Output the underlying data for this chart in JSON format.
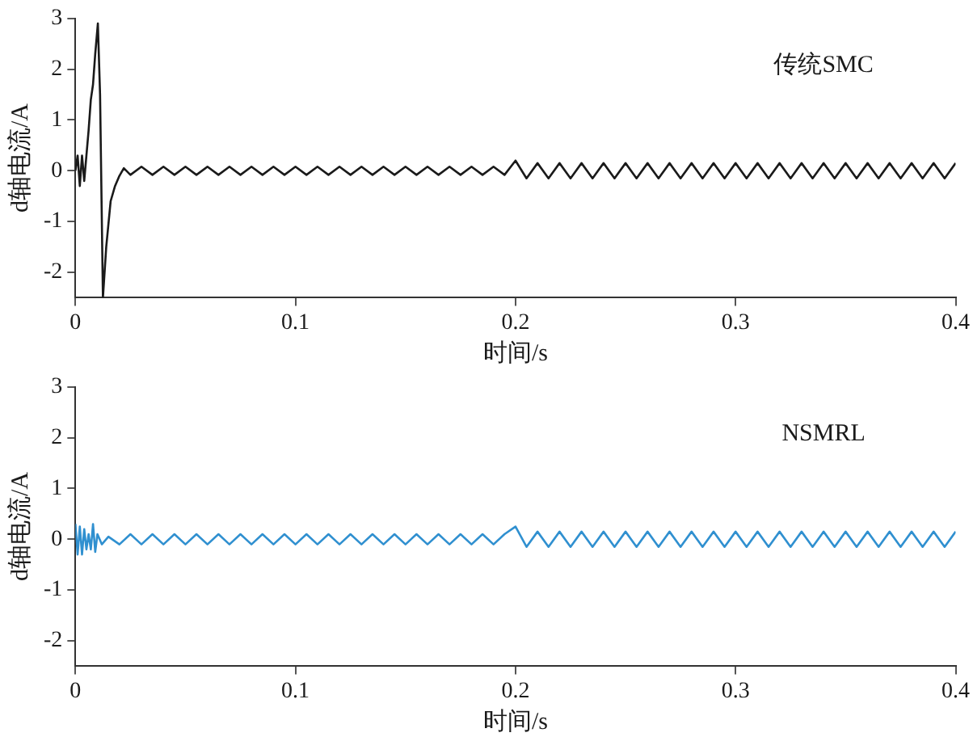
{
  "chart_data": [
    {
      "type": "line",
      "xlabel": "时间/s",
      "ylabel": "d轴电流/A",
      "annotations": [
        "传统SMC"
      ],
      "xlim": [
        0,
        0.4
      ],
      "xticks": [
        0,
        0.1,
        0.2,
        0.3,
        0.4
      ],
      "ylim": [
        -2.5,
        3
      ],
      "yticks": [
        -2,
        -1,
        0,
        1,
        2,
        3
      ],
      "grid": false,
      "legend": false,
      "marker": "none",
      "series": [
        {
          "color": "#1a1a1a",
          "x": [
            0,
            0.001,
            0.002,
            0.003,
            0.004,
            0.005,
            0.006,
            0.007,
            0.008,
            0.009,
            0.0102,
            0.0112,
            0.0125,
            0.014,
            0.016,
            0.018,
            0.02,
            0.022,
            0.025,
            0.03,
            0.035,
            0.04,
            0.045,
            0.05,
            0.055,
            0.06,
            0.065,
            0.07,
            0.075,
            0.08,
            0.085,
            0.09,
            0.095,
            0.1,
            0.105,
            0.11,
            0.115,
            0.12,
            0.125,
            0.13,
            0.135,
            0.14,
            0.145,
            0.15,
            0.155,
            0.16,
            0.165,
            0.17,
            0.175,
            0.18,
            0.185,
            0.19,
            0.195,
            0.2,
            0.205,
            0.21,
            0.215,
            0.22,
            0.225,
            0.23,
            0.235,
            0.24,
            0.245,
            0.25,
            0.255,
            0.26,
            0.265,
            0.27,
            0.275,
            0.28,
            0.285,
            0.29,
            0.295,
            0.3,
            0.305,
            0.31,
            0.315,
            0.32,
            0.325,
            0.33,
            0.335,
            0.34,
            0.345,
            0.35,
            0.355,
            0.36,
            0.365,
            0.37,
            0.375,
            0.38,
            0.385,
            0.39,
            0.395,
            0.4
          ],
          "values": [
            0,
            0.3,
            -0.3,
            0.3,
            -0.2,
            0.3,
            0.8,
            1.4,
            1.7,
            2.3,
            2.9,
            1.5,
            -2.5,
            -1.5,
            -0.6,
            -0.3,
            -0.1,
            0.05,
            -0.08,
            0.08,
            -0.08,
            0.08,
            -0.08,
            0.08,
            -0.08,
            0.08,
            -0.08,
            0.08,
            -0.08,
            0.08,
            -0.08,
            0.08,
            -0.08,
            0.08,
            -0.08,
            0.08,
            -0.08,
            0.08,
            -0.08,
            0.08,
            -0.08,
            0.08,
            -0.08,
            0.08,
            -0.08,
            0.08,
            -0.08,
            0.08,
            -0.08,
            0.08,
            -0.08,
            0.08,
            -0.08,
            0.2,
            -0.15,
            0.15,
            -0.15,
            0.15,
            -0.15,
            0.15,
            -0.15,
            0.15,
            -0.15,
            0.15,
            -0.15,
            0.15,
            -0.15,
            0.15,
            -0.15,
            0.15,
            -0.15,
            0.15,
            -0.15,
            0.15,
            -0.15,
            0.15,
            -0.15,
            0.15,
            -0.15,
            0.15,
            -0.15,
            0.15,
            -0.15,
            0.15,
            -0.15,
            0.15,
            -0.15,
            0.15,
            -0.15,
            0.15,
            -0.15,
            0.15,
            -0.15,
            0.15
          ]
        }
      ]
    },
    {
      "type": "line",
      "xlabel": "时间/s",
      "ylabel": "d轴电流/A",
      "annotations": [
        "NSMRL"
      ],
      "xlim": [
        0,
        0.4
      ],
      "xticks": [
        0,
        0.1,
        0.2,
        0.3,
        0.4
      ],
      "ylim": [
        -2.5,
        3
      ],
      "yticks": [
        -2,
        -1,
        0,
        1,
        2,
        3
      ],
      "grid": false,
      "legend": false,
      "marker": "none",
      "series": [
        {
          "color": "#3090d0",
          "x": [
            0,
            0.001,
            0.002,
            0.003,
            0.004,
            0.005,
            0.006,
            0.007,
            0.008,
            0.009,
            0.01,
            0.012,
            0.015,
            0.02,
            0.025,
            0.03,
            0.035,
            0.04,
            0.045,
            0.05,
            0.055,
            0.06,
            0.065,
            0.07,
            0.075,
            0.08,
            0.085,
            0.09,
            0.095,
            0.1,
            0.105,
            0.11,
            0.115,
            0.12,
            0.125,
            0.13,
            0.135,
            0.14,
            0.145,
            0.15,
            0.155,
            0.16,
            0.165,
            0.17,
            0.175,
            0.18,
            0.185,
            0.19,
            0.195,
            0.2,
            0.205,
            0.21,
            0.215,
            0.22,
            0.225,
            0.23,
            0.235,
            0.24,
            0.245,
            0.25,
            0.255,
            0.26,
            0.265,
            0.27,
            0.275,
            0.28,
            0.285,
            0.29,
            0.295,
            0.3,
            0.305,
            0.31,
            0.315,
            0.32,
            0.325,
            0.33,
            0.335,
            0.34,
            0.345,
            0.35,
            0.355,
            0.36,
            0.365,
            0.37,
            0.375,
            0.38,
            0.385,
            0.39,
            0.395,
            0.4
          ],
          "values": [
            0.3,
            -0.3,
            0.25,
            -0.3,
            0.2,
            -0.2,
            0.1,
            -0.2,
            0.3,
            -0.25,
            0.1,
            -0.1,
            0.05,
            -0.1,
            0.1,
            -0.1,
            0.1,
            -0.1,
            0.1,
            -0.1,
            0.1,
            -0.1,
            0.1,
            -0.1,
            0.1,
            -0.1,
            0.1,
            -0.1,
            0.1,
            -0.1,
            0.1,
            -0.1,
            0.1,
            -0.1,
            0.1,
            -0.1,
            0.1,
            -0.1,
            0.1,
            -0.1,
            0.1,
            -0.1,
            0.1,
            -0.1,
            0.1,
            -0.1,
            0.1,
            -0.1,
            0.1,
            0.25,
            -0.15,
            0.15,
            -0.15,
            0.15,
            -0.15,
            0.15,
            -0.15,
            0.15,
            -0.15,
            0.15,
            -0.15,
            0.15,
            -0.15,
            0.15,
            -0.15,
            0.15,
            -0.15,
            0.15,
            -0.15,
            0.15,
            -0.15,
            0.15,
            -0.15,
            0.15,
            -0.15,
            0.15,
            -0.15,
            0.15,
            -0.15,
            0.15,
            -0.15,
            0.15,
            -0.15,
            0.15,
            -0.15,
            0.15,
            -0.15,
            0.15,
            -0.15,
            0.15
          ]
        }
      ]
    }
  ]
}
